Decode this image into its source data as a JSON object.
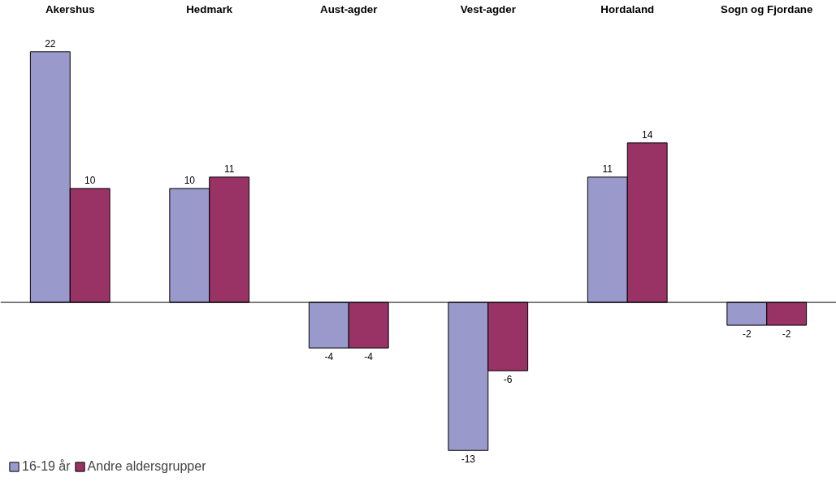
{
  "chart_data": {
    "type": "bar",
    "categories": [
      "Akershus",
      "Hedmark",
      "Aust-agder",
      "Vest-agder",
      "Hordaland",
      "Sogn og Fjordane"
    ],
    "series": [
      {
        "name": "16-19 år",
        "color": "#9999cc",
        "values": [
          22,
          10,
          -4,
          -13,
          11,
          -2
        ]
      },
      {
        "name": "Andre aldersgrupper",
        "color": "#993366",
        "values": [
          10,
          11,
          -4,
          -6,
          14,
          -2
        ]
      }
    ],
    "data_labels": true,
    "legend": "bottom left",
    "grid": false
  }
}
